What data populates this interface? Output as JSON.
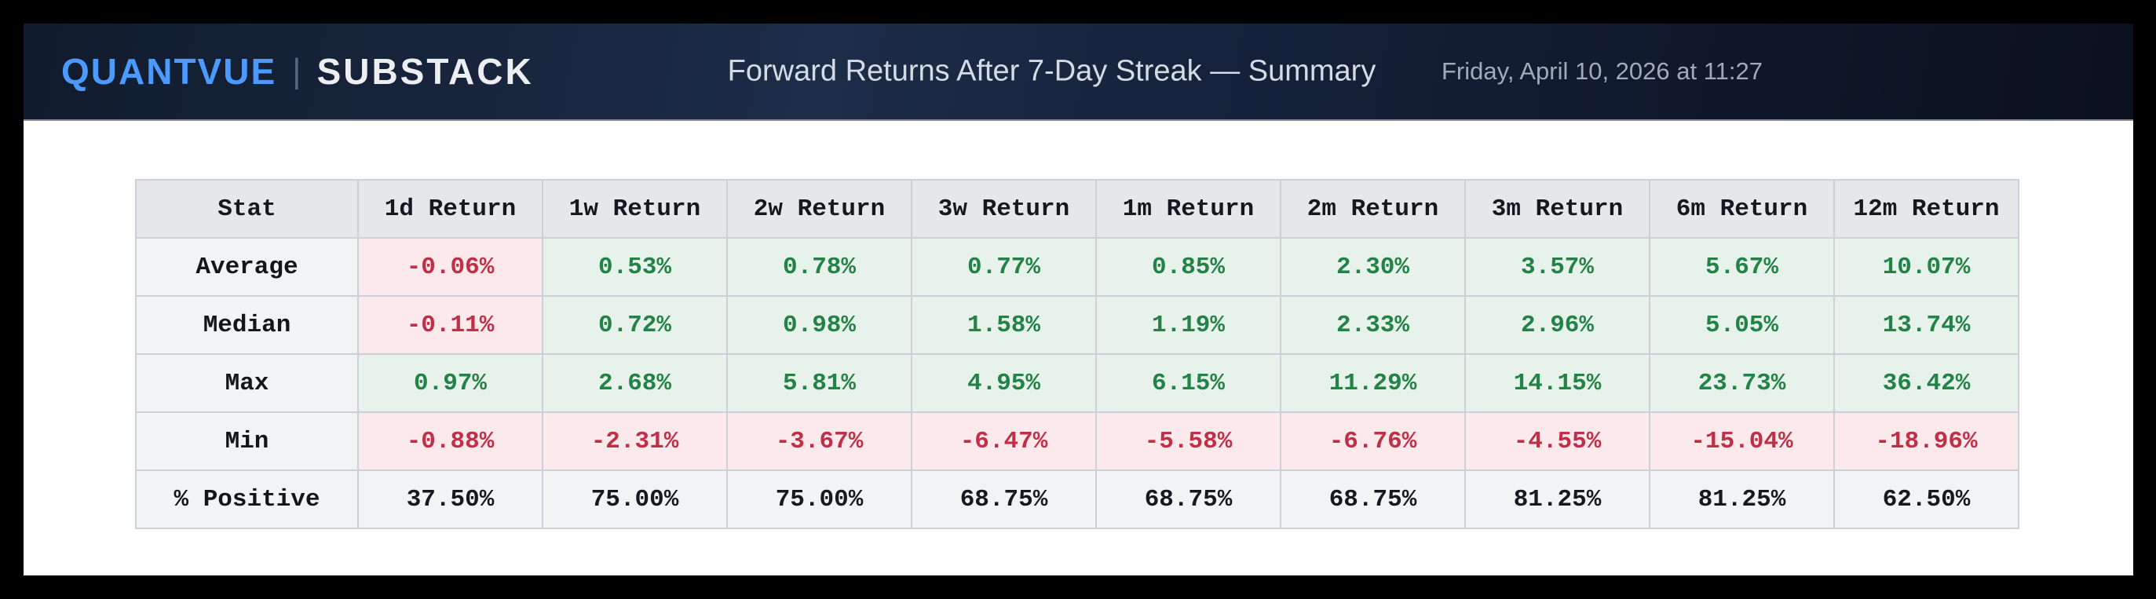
{
  "header": {
    "brand_primary": "QUANTVUE",
    "brand_divider": "|",
    "brand_secondary": "SUBSTACK",
    "title": "Forward Returns After 7-Day Streak — Summary",
    "datetime": "Friday, April 10, 2026 at 11:27"
  },
  "colors": {
    "accent-blue": "#4c9aff",
    "positive-text": "#238246",
    "positive-bg": "#e7f2eb",
    "negative-text": "#bf3048",
    "negative-bg": "#fce9ec",
    "neutral-text": "#16191e",
    "neutral-bg": "#f2f3f5"
  },
  "chart_data": {
    "type": "table",
    "title": "Forward Returns After 7-Day Streak — Summary",
    "columns": [
      "Stat",
      "1d Return",
      "1w Return",
      "2w Return",
      "3w Return",
      "1m Return",
      "2m Return",
      "3m Return",
      "6m Return",
      "12m Return"
    ],
    "rows": [
      {
        "stat": "Average",
        "neutral": false,
        "values": [
          "-0.06%",
          "0.53%",
          "0.78%",
          "0.77%",
          "0.85%",
          "2.30%",
          "3.57%",
          "5.67%",
          "10.07%"
        ]
      },
      {
        "stat": "Median",
        "neutral": false,
        "values": [
          "-0.11%",
          "0.72%",
          "0.98%",
          "1.58%",
          "1.19%",
          "2.33%",
          "2.96%",
          "5.05%",
          "13.74%"
        ]
      },
      {
        "stat": "Max",
        "neutral": false,
        "values": [
          "0.97%",
          "2.68%",
          "5.81%",
          "4.95%",
          "6.15%",
          "11.29%",
          "14.15%",
          "23.73%",
          "36.42%"
        ]
      },
      {
        "stat": "Min",
        "neutral": false,
        "values": [
          "-0.88%",
          "-2.31%",
          "-3.67%",
          "-6.47%",
          "-5.58%",
          "-6.76%",
          "-4.55%",
          "-15.04%",
          "-18.96%"
        ]
      },
      {
        "stat": "% Positive",
        "neutral": true,
        "values": [
          "37.50%",
          "75.00%",
          "75.00%",
          "68.75%",
          "68.75%",
          "68.75%",
          "81.25%",
          "81.25%",
          "62.50%"
        ]
      }
    ]
  }
}
